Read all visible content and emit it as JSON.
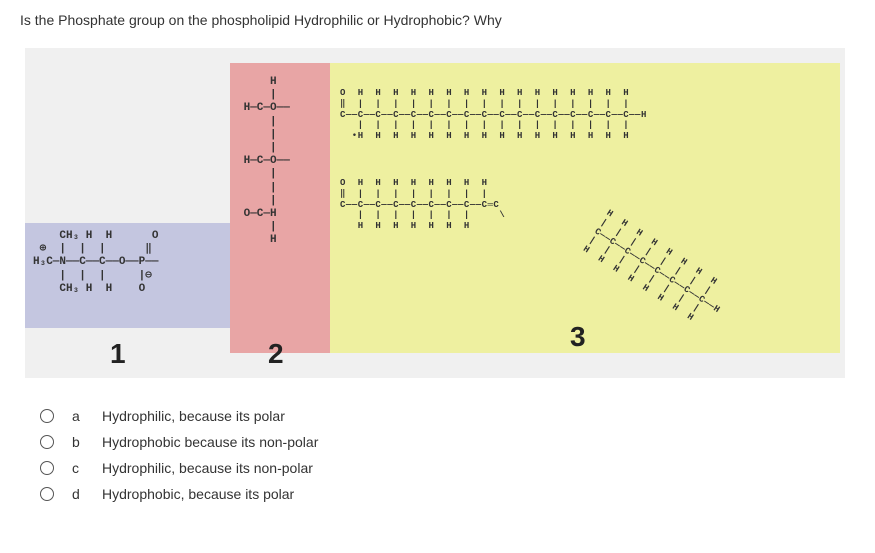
{
  "question": "Is the Phosphate group on the phospholipid Hydrophilic or Hydrophobic? Why",
  "diagram": {
    "region1": {
      "label": "1",
      "bg_color": "#c4c6e0",
      "structure": "    CH₃ H  H      O\n ⊕  |  |  |      ‖\nH₃C—N——C——C——O——P——\n    |  |  |     |⊖\n    CH₃ H  H    O"
    },
    "region2": {
      "label": "2",
      "bg_color": "#e8a5a5",
      "structure": "     H\n     |\n H—C—O——\n     |\n     |\n     |\n H—C—O——\n     |\n     |\n     |\n O—C—H\n     |\n     H"
    },
    "region3": {
      "label": "3",
      "bg_color": "#eef0a0",
      "chain_top": "O  H  H  H  H  H  H  H  H  H  H  H  H  H  H  H  H\n‖  |  |  |  |  |  |  |  |  |  |  |  |  |  |  |  |\nC——C——C——C——C——C——C——C——C——C——C——C——C——C——C——C——C——H\n   |  |  |  |  |  |  |  |  |  |  |  |  |  |  |  |\n  •H  H  H  H  H  H  H  H  H  H  H  H  H  H  H  H",
      "chain_bottom": "O  H  H  H  H  H  H  H  H\n‖  |  |  |  |  |  |  |  |\nC——C——C——C——C——C——C——C——C═C\n   |  |  |  |  |  |  |     \\\n   H  H  H  H  H  H  H",
      "chain_diag": "H  H  H  H  H  H  H  H\n|  |  |  |  |  |  |  |\nC——C——C——C——C——C——C——C——H\n|  |  |  |  |  |  |  |\nH  H  H  H  H  H  H  H"
    }
  },
  "options": [
    {
      "letter": "a",
      "text": "Hydrophilic, because its polar"
    },
    {
      "letter": "b",
      "text": "Hydrophobic because its non-polar"
    },
    {
      "letter": "c",
      "text": "Hydrophilic, because its non-polar"
    },
    {
      "letter": "d",
      "text": "Hydrophobic, because its polar"
    }
  ],
  "colors": {
    "background": "#ffffff",
    "text": "#333333",
    "diagram_bg": "#f0f0f0"
  },
  "fonts": {
    "question_size": 14,
    "option_size": 14,
    "label_size": 28,
    "chem_size": 10
  }
}
